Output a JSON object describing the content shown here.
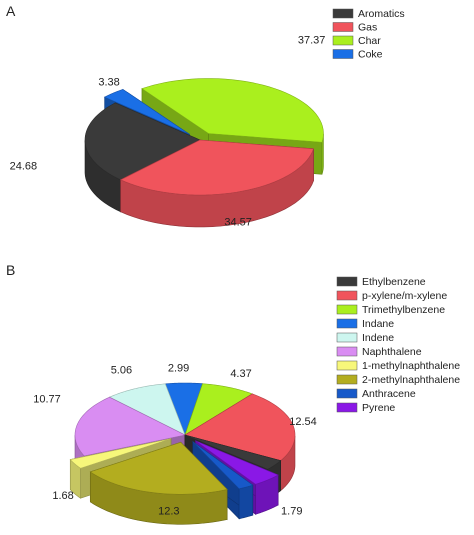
{
  "chart_data": [
    {
      "type": "pie",
      "panel_label": "A",
      "title": "",
      "legend_position": "top-right",
      "slices": [
        {
          "label": "Aromatics",
          "value": 24.68,
          "color": "#3a3a3a"
        },
        {
          "label": "Gas",
          "value": 34.57,
          "color": "#f0545c"
        },
        {
          "label": "Char",
          "value": 37.37,
          "color": "#aaef1e"
        },
        {
          "label": "Coke",
          "value": 3.38,
          "color": "#1a6fe6"
        }
      ],
      "exploded": [
        "Char",
        "Coke"
      ]
    },
    {
      "type": "pie",
      "panel_label": "B",
      "title": "",
      "legend_position": "top-right",
      "slices": [
        {
          "label": "Ethylbenzene",
          "value": 1.79,
          "color": "#3a3a3a"
        },
        {
          "label": "p-xylene/m-xylene",
          "value": 12.54,
          "color": "#f0545c"
        },
        {
          "label": "Trimethylbenzene",
          "value": 4.37,
          "color": "#aaef1e"
        },
        {
          "label": "Indane",
          "value": 2.99,
          "color": "#1a6fe6"
        },
        {
          "label": "Indene",
          "value": 5.06,
          "color": "#cdf6ef"
        },
        {
          "label": "Naphthalene",
          "value": 10.77,
          "color": "#d98df2"
        },
        {
          "label": "1-methylnaphthalene",
          "value": 1.68,
          "color": "#f7f77a"
        },
        {
          "label": "2-methylnaphthalene",
          "value": 12.3,
          "color": "#b3ad1f"
        },
        {
          "label": "Anthracene",
          "value": 1.25,
          "color": "#1759c9"
        },
        {
          "label": "Pyrene",
          "value": 2.4,
          "color": "#8a18e6"
        }
      ],
      "exploded": [
        "1-methylnaphthalene",
        "2-methylnaphthalene",
        "Anthracene",
        "Pyrene"
      ]
    }
  ]
}
